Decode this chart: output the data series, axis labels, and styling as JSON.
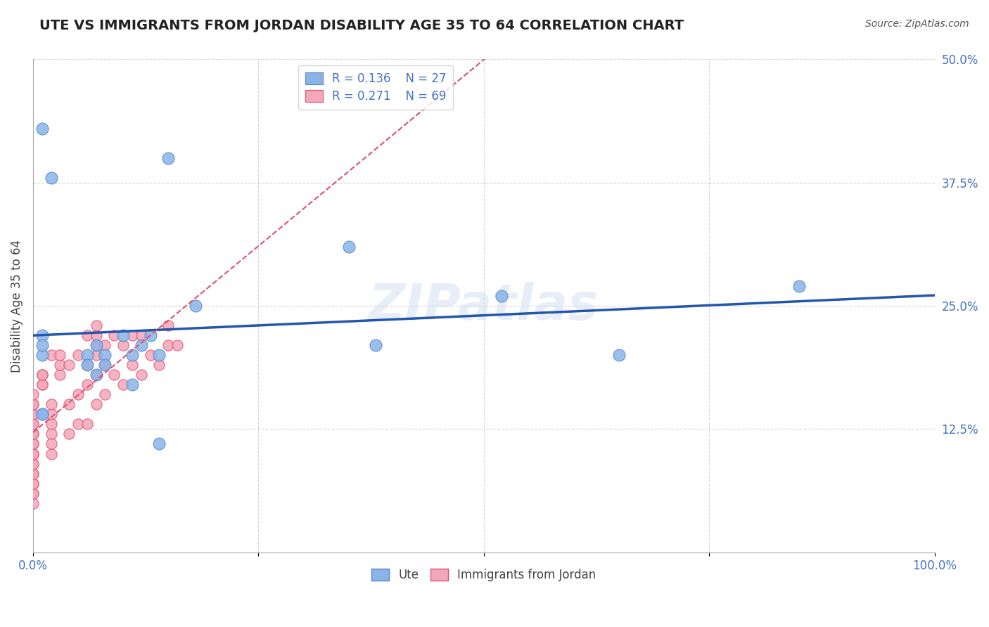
{
  "title": "UTE VS IMMIGRANTS FROM JORDAN DISABILITY AGE 35 TO 64 CORRELATION CHART",
  "source": "Source: ZipAtlas.com",
  "xlabel": "",
  "ylabel": "Disability Age 35 to 64",
  "xlim": [
    0.0,
    1.0
  ],
  "ylim": [
    0.0,
    0.5
  ],
  "xticks": [
    0.0,
    0.25,
    0.5,
    0.75,
    1.0
  ],
  "xtick_labels": [
    "0.0%",
    "",
    "",
    "",
    "100.0%"
  ],
  "ytick_labels": [
    "",
    "12.5%",
    "",
    "25.0%",
    "",
    "37.5%",
    "",
    "50.0%"
  ],
  "yticks": [
    0.0,
    0.125,
    0.1875,
    0.25,
    0.3125,
    0.375,
    0.4375,
    0.5
  ],
  "legend_r_blue": "R = 0.136",
  "legend_n_blue": "N = 27",
  "legend_r_pink": "R = 0.271",
  "legend_n_pink": "N = 69",
  "blue_color": "#8ab4e8",
  "pink_color": "#f4a7b9",
  "blue_line_color": "#2456ae",
  "pink_line_color": "#e05070",
  "grid_color": "#cccccc",
  "title_color": "#222222",
  "axis_label_color": "#4472c4",
  "watermark": "ZIPatlas",
  "ute_x": [
    0.02,
    0.01,
    0.15,
    0.35,
    0.01,
    0.01,
    0.06,
    0.07,
    0.01,
    0.06,
    0.08,
    0.11,
    0.12,
    0.07,
    0.11,
    0.38,
    0.14,
    0.85,
    0.52,
    0.65,
    0.13,
    0.01,
    0.01,
    0.08,
    0.14,
    0.1,
    0.18
  ],
  "ute_y": [
    0.38,
    0.43,
    0.4,
    0.31,
    0.2,
    0.22,
    0.2,
    0.21,
    0.21,
    0.19,
    0.2,
    0.2,
    0.21,
    0.18,
    0.17,
    0.21,
    0.11,
    0.27,
    0.26,
    0.2,
    0.22,
    0.14,
    0.14,
    0.19,
    0.2,
    0.22,
    0.25
  ],
  "jordan_x": [
    0.0,
    0.0,
    0.0,
    0.0,
    0.0,
    0.0,
    0.0,
    0.0,
    0.0,
    0.0,
    0.0,
    0.0,
    0.0,
    0.0,
    0.0,
    0.0,
    0.0,
    0.0,
    0.0,
    0.0,
    0.0,
    0.0,
    0.0,
    0.01,
    0.01,
    0.01,
    0.01,
    0.02,
    0.02,
    0.02,
    0.02,
    0.02,
    0.02,
    0.02,
    0.03,
    0.03,
    0.03,
    0.04,
    0.04,
    0.04,
    0.05,
    0.05,
    0.05,
    0.06,
    0.06,
    0.06,
    0.06,
    0.07,
    0.07,
    0.07,
    0.07,
    0.07,
    0.07,
    0.08,
    0.08,
    0.08,
    0.09,
    0.09,
    0.1,
    0.1,
    0.11,
    0.11,
    0.12,
    0.12,
    0.13,
    0.14,
    0.15,
    0.15,
    0.16
  ],
  "jordan_y": [
    0.05,
    0.06,
    0.06,
    0.07,
    0.07,
    0.08,
    0.08,
    0.09,
    0.09,
    0.1,
    0.1,
    0.1,
    0.11,
    0.11,
    0.12,
    0.12,
    0.13,
    0.13,
    0.14,
    0.14,
    0.15,
    0.15,
    0.16,
    0.17,
    0.17,
    0.18,
    0.18,
    0.1,
    0.11,
    0.12,
    0.13,
    0.14,
    0.15,
    0.2,
    0.18,
    0.19,
    0.2,
    0.12,
    0.15,
    0.19,
    0.13,
    0.16,
    0.2,
    0.13,
    0.17,
    0.19,
    0.22,
    0.15,
    0.18,
    0.2,
    0.21,
    0.22,
    0.23,
    0.16,
    0.19,
    0.21,
    0.18,
    0.22,
    0.17,
    0.21,
    0.19,
    0.22,
    0.18,
    0.22,
    0.2,
    0.19,
    0.21,
    0.23,
    0.21
  ]
}
